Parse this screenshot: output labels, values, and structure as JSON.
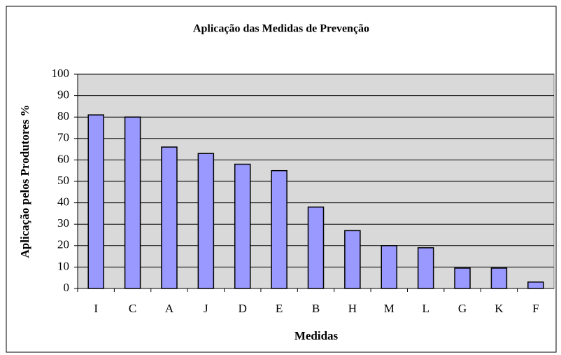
{
  "chart_data": {
    "type": "bar",
    "title": "Aplicação das Medidas de Prevenção",
    "x_label": "Medidas",
    "y_label": "Aplicação pelos Produtores %",
    "categories": [
      "I",
      "C",
      "A",
      "J",
      "D",
      "E",
      "B",
      "H",
      "M",
      "L",
      "G",
      "K",
      "F"
    ],
    "values": [
      81,
      80,
      66,
      63,
      58,
      55,
      38,
      27,
      20,
      19,
      9.5,
      9.5,
      3
    ],
    "color": "#9999ff",
    "ylim": [
      0,
      100
    ],
    "yticks": [
      0,
      10,
      20,
      30,
      40,
      50,
      60,
      70,
      80,
      90,
      100
    ],
    "grid": true
  }
}
